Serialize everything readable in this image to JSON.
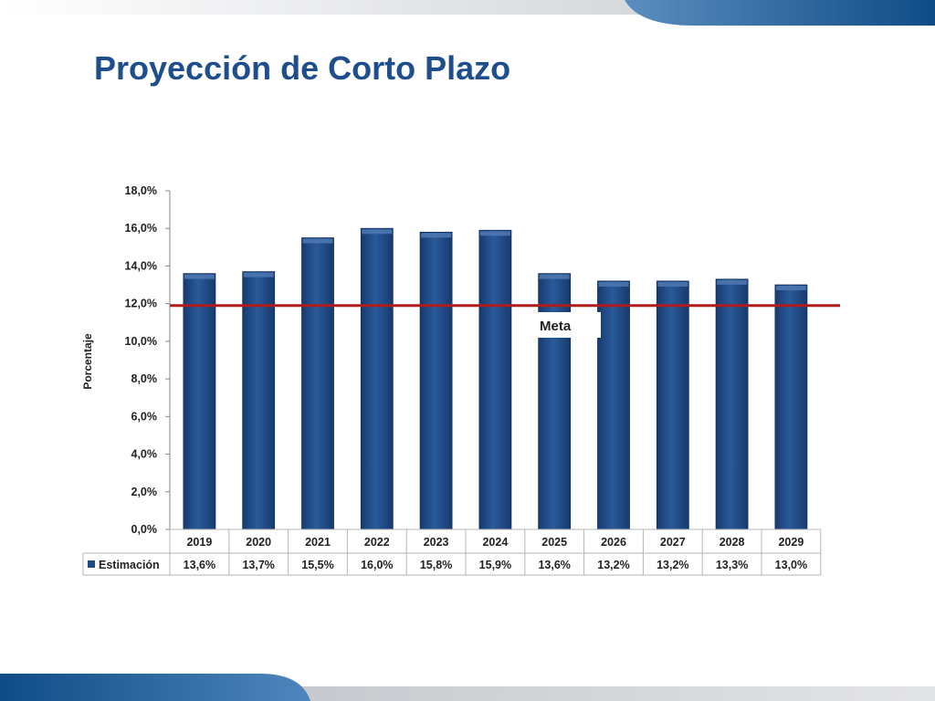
{
  "slide": {
    "title": "Proyección de Corto Plazo"
  },
  "colors": {
    "bar": "#1f4a85",
    "bar_highlight": "#4f79b3",
    "target_line": "#b01c1c",
    "title": "#1f4e8c",
    "band_dark": "#1d5b96",
    "band_light": "#c9ccd2"
  },
  "chart_data": {
    "type": "bar",
    "ylabel": "Porcentaje",
    "ylim": [
      0,
      18
    ],
    "yticks": [
      "0,0%",
      "2,0%",
      "4,0%",
      "6,0%",
      "8,0%",
      "10,0%",
      "12,0%",
      "14,0%",
      "16,0%",
      "18,0%"
    ],
    "categories": [
      "2019",
      "2020",
      "2021",
      "2022",
      "2023",
      "2024",
      "2025",
      "2026",
      "2027",
      "2028",
      "2029"
    ],
    "series": [
      {
        "name": "Estimación",
        "values": [
          13.6,
          13.7,
          15.5,
          16.0,
          15.8,
          15.9,
          13.6,
          13.2,
          13.2,
          13.3,
          13.0
        ],
        "labels": [
          "13,6%",
          "13,7%",
          "15,5%",
          "16,0%",
          "15,8%",
          "15,9%",
          "13,6%",
          "13,2%",
          "13,2%",
          "13,3%",
          "13,0%"
        ]
      }
    ],
    "target": {
      "label": "Meta",
      "value": 11.9
    },
    "grid": false,
    "data_table": true
  }
}
